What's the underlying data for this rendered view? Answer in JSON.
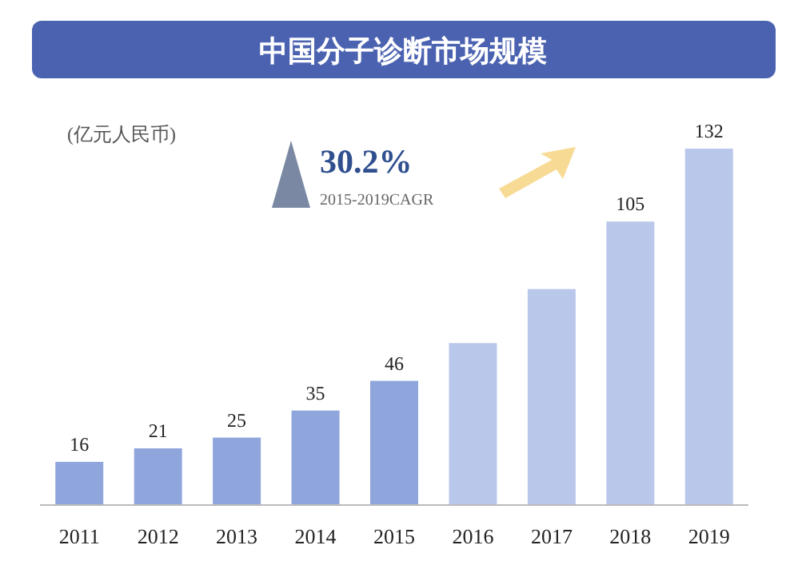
{
  "chart_data": {
    "type": "bar",
    "title": "中国分子诊断市场规模",
    "ylabel": "(亿元人民币)",
    "categories": [
      "2011",
      "2012",
      "2013",
      "2014",
      "2015",
      "2016",
      "2017",
      "2018",
      "2019"
    ],
    "values": [
      16,
      21,
      25,
      35,
      46,
      60,
      80,
      105,
      132
    ],
    "value_labels": [
      "16",
      "21",
      "25",
      "35",
      "46",
      null,
      null,
      "105",
      "132"
    ],
    "colors": [
      "#8fa6dd",
      "#8fa6dd",
      "#8fa6dd",
      "#8fa6dd",
      "#8fa6dd",
      "#b9c8ea",
      "#b9c8ea",
      "#b9c8ea",
      "#b9c8ea"
    ],
    "annotations": [
      "30.2%",
      "2015-2019CAGR"
    ]
  }
}
